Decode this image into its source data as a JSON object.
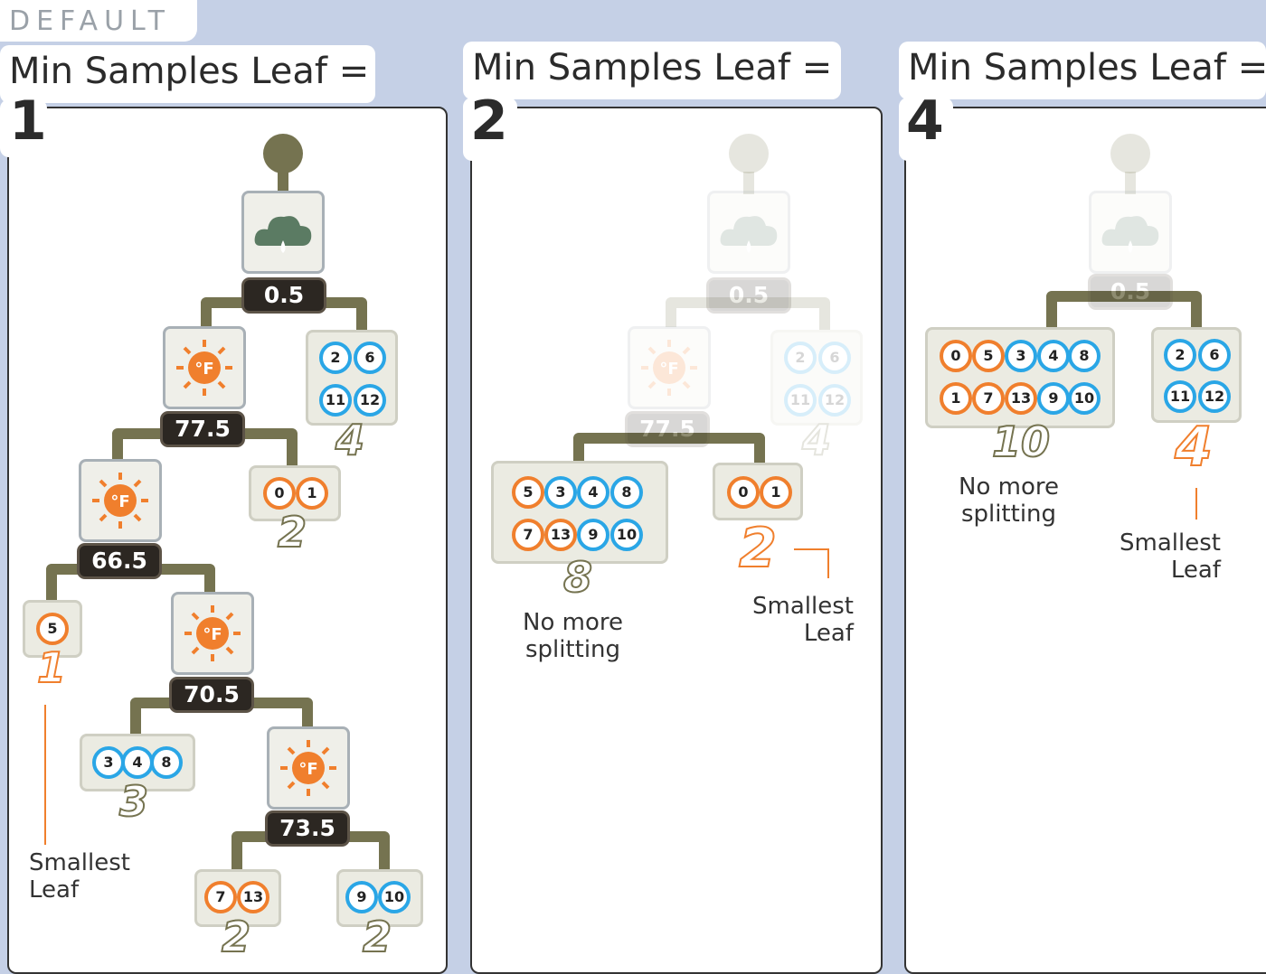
{
  "header": {
    "tag": "DEFAULT"
  },
  "panels": [
    {
      "title": "Min Samples Leaf =",
      "value": "1"
    },
    {
      "title": "Min Samples Leaf =",
      "value": "2"
    },
    {
      "title": "Min Samples Leaf =",
      "value": "4"
    }
  ],
  "thresholds": {
    "t05": "0.5",
    "t775": "77.5",
    "t665": "66.5",
    "t705": "70.5",
    "t735": "73.5"
  },
  "panel1": {
    "leaf_a": {
      "samples": [
        "2",
        "6",
        "11",
        "12"
      ],
      "count": "4"
    },
    "leaf_b": {
      "samples": [
        "0",
        "1"
      ],
      "count": "2"
    },
    "leaf_c": {
      "samples": [
        "5"
      ],
      "count": "1"
    },
    "leaf_d": {
      "samples": [
        "3",
        "4",
        "8"
      ],
      "count": "3"
    },
    "leaf_e": {
      "samples": [
        "7",
        "13"
      ],
      "count": "2"
    },
    "leaf_f": {
      "samples": [
        "9",
        "10"
      ],
      "count": "2"
    },
    "note": [
      "Smallest",
      "Leaf"
    ]
  },
  "panel2": {
    "leaf_a": {
      "samples": [
        "2",
        "6",
        "11",
        "12"
      ],
      "count": "4"
    },
    "leaf_b": {
      "samples": [
        "5",
        "3",
        "4",
        "8",
        "7",
        "13",
        "9",
        "10"
      ],
      "count": "8"
    },
    "leaf_c": {
      "samples": [
        "0",
        "1"
      ],
      "count": "2"
    },
    "note_split": [
      "No more",
      "splitting"
    ],
    "note_small": [
      "Smallest",
      "Leaf"
    ]
  },
  "panel3": {
    "leaf_a": {
      "samples": [
        "0",
        "5",
        "3",
        "4",
        "8",
        "1",
        "7",
        "13",
        "9",
        "10"
      ],
      "count": "10"
    },
    "leaf_b": {
      "samples": [
        "2",
        "6",
        "11",
        "12"
      ],
      "count": "4"
    },
    "note_split": [
      "No more",
      "splitting"
    ],
    "note_small": [
      "Smallest",
      "Leaf"
    ]
  },
  "colors": {
    "orange": "#f07f2d",
    "blue": "#2aa6e6",
    "branch": "#757350",
    "threshold": "#2c2722"
  },
  "icons": {
    "root": "root-knob-icon",
    "rain": "rain-cloud-icon",
    "temp": "sun-fahrenheit-icon",
    "leaf": "leaf-icon"
  }
}
